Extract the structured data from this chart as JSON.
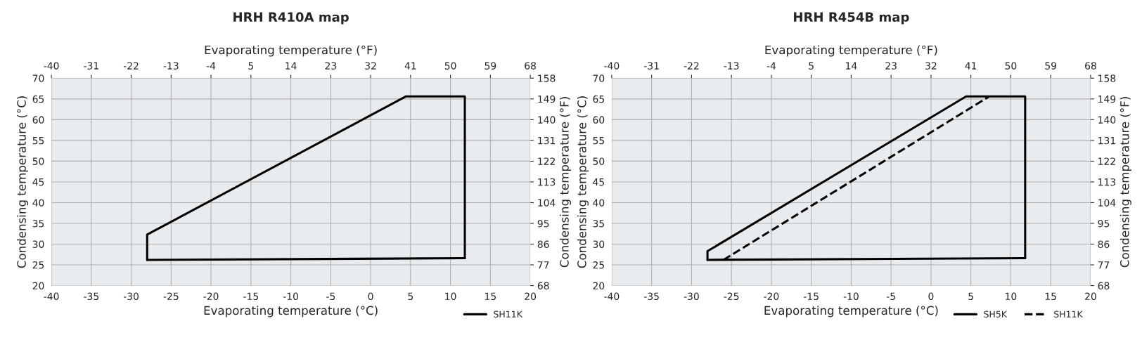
{
  "chart_data": [
    {
      "type": "line",
      "title": "HRH R410A map",
      "xlabel": "Evaporating temperature (°C)",
      "ylabel": "Condensing temperature (°C)",
      "x2label": "Evaporating temperature (°F)",
      "y2label": "Condensing temperature (°F)",
      "xlim": [
        -40,
        20
      ],
      "xticks": [
        -40,
        -35,
        -30,
        -25,
        -20,
        -15,
        -10,
        -5,
        0,
        5,
        10,
        15,
        20
      ],
      "ylim": [
        20,
        70
      ],
      "yticks": [
        20,
        25,
        30,
        35,
        40,
        45,
        50,
        55,
        60,
        65,
        70
      ],
      "x2lim": [
        -40,
        68
      ],
      "x2ticks": [
        -40,
        -31,
        -22,
        -13,
        -4,
        5,
        14,
        23,
        32,
        41,
        50,
        59,
        68
      ],
      "y2lim": [
        68,
        158
      ],
      "y2ticks": [
        68,
        77,
        86,
        95,
        104,
        113,
        122,
        131,
        140,
        149,
        158
      ],
      "grid": true,
      "legend": "bottom right",
      "marker": "none",
      "series": [
        {
          "name": "SH11K",
          "color": "#000000",
          "line_style": "solid",
          "x": [
            -28,
            -28,
            4.4,
            11.8,
            11.8
          ],
          "values": [
            26.2,
            32.3,
            65.6,
            65.6,
            26.6
          ]
        },
        {
          "color": "#000000",
          "line_style": "solid",
          "x": [
            -28,
            11.8
          ],
          "values": [
            26.2,
            26.6
          ]
        }
      ]
    },
    {
      "type": "line",
      "title": "HRH R454B map",
      "xlabel": "Evaporating temperature (°C)",
      "ylabel": "Condensing temperature (°C)",
      "x2label": "Evaporating temperature (°F)",
      "y2label": "Condensing temperature (°F)",
      "xlim": [
        -40,
        20
      ],
      "xticks": [
        -40,
        -35,
        -30,
        -25,
        -20,
        -15,
        -10,
        -5,
        0,
        5,
        10,
        15,
        20
      ],
      "ylim": [
        20,
        70
      ],
      "yticks": [
        20,
        25,
        30,
        35,
        40,
        45,
        50,
        55,
        60,
        65,
        70
      ],
      "x2lim": [
        -40,
        68
      ],
      "x2ticks": [
        -40,
        -31,
        -22,
        -13,
        -4,
        5,
        14,
        23,
        32,
        41,
        50,
        59,
        68
      ],
      "y2lim": [
        68,
        158
      ],
      "y2ticks": [
        68,
        77,
        86,
        95,
        104,
        113,
        122,
        131,
        140,
        149,
        158
      ],
      "grid": true,
      "legend": "bottom right",
      "marker": "none",
      "series": [
        {
          "name": "SH5K",
          "color": "#000000",
          "line_style": "solid",
          "x": [
            -28,
            -28,
            4.4,
            11.8,
            11.8
          ],
          "values": [
            26.2,
            28.3,
            65.6,
            65.6,
            26.6
          ]
        },
        {
          "color": "#000000",
          "line_style": "solid",
          "x": [
            -28,
            11.8
          ],
          "values": [
            26.2,
            26.6
          ]
        },
        {
          "name": "SH11K",
          "color": "#000000",
          "line_style": "dashed",
          "x": [
            -26,
            7.3
          ],
          "values": [
            26.2,
            65.6
          ]
        }
      ]
    }
  ]
}
